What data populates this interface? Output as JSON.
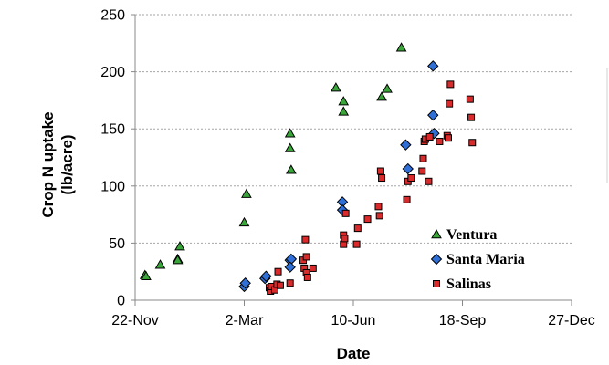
{
  "chart_data": {
    "type": "scatter",
    "title": "",
    "xlabel": "Date",
    "ylabel": "Crop N uptake\n(lb/acre)",
    "x_axis_type": "date",
    "x_ticks": [
      "22-Nov",
      "2-Mar",
      "10-Jun",
      "18-Sep",
      "27-Dec"
    ],
    "y_ticks": [
      "0",
      "50",
      "100",
      "150",
      "200",
      "250"
    ],
    "ylim": [
      0,
      250
    ],
    "grid": "horizontal",
    "legend_position": "bottom-right, inside plot",
    "series": [
      {
        "name": "Ventura",
        "marker": "triangle",
        "color": "#3aa63a",
        "points": [
          [
            "1-Dec",
            22
          ],
          [
            "2-Dec",
            21
          ],
          [
            "15-Dec",
            31
          ],
          [
            "31-Dec",
            36
          ],
          [
            "31-Dec",
            35
          ],
          [
            "2-Jan",
            47
          ],
          [
            "2-Mar",
            68
          ],
          [
            "4-Mar",
            93
          ],
          [
            "13-Apr",
            146
          ],
          [
            "13-Apr",
            133
          ],
          [
            "14-Apr",
            114
          ],
          [
            "25-May",
            186
          ],
          [
            "1-Jun",
            174
          ],
          [
            "1-Jun",
            165
          ],
          [
            "6-Jul",
            178
          ],
          [
            "11-Jul",
            185
          ],
          [
            "24-Jul",
            221
          ]
        ]
      },
      {
        "name": "Santa Maria",
        "marker": "diamond",
        "color": "#2f6fd6",
        "points": [
          [
            "2-Mar",
            12
          ],
          [
            "3-Mar",
            15
          ],
          [
            "21-Mar",
            19
          ],
          [
            "22-Mar",
            21
          ],
          [
            "13-Apr",
            35
          ],
          [
            "14-Apr",
            36
          ],
          [
            "13-Apr",
            29
          ],
          [
            "31-May",
            86
          ],
          [
            "31-May",
            79
          ],
          [
            "28-Jul",
            136
          ],
          [
            "30-Jul",
            115
          ],
          [
            "22-Aug",
            205
          ],
          [
            "22-Aug",
            162
          ],
          [
            "23-Aug",
            146
          ]
        ]
      },
      {
        "name": "Salinas",
        "marker": "square",
        "color": "#d92b2b",
        "points": [
          [
            "25-Mar",
            11
          ],
          [
            "26-Mar",
            8
          ],
          [
            "27-Mar",
            12
          ],
          [
            "30-Mar",
            9
          ],
          [
            "1-Apr",
            14
          ],
          [
            "4-Apr",
            13
          ],
          [
            "2-Apr",
            25
          ],
          [
            "13-Apr",
            15
          ],
          [
            "25-Apr",
            35
          ],
          [
            "26-Apr",
            28
          ],
          [
            "27-Apr",
            53
          ],
          [
            "28-Apr",
            38
          ],
          [
            "28-Apr",
            24
          ],
          [
            "29-Apr",
            20
          ],
          [
            "4-May",
            28
          ],
          [
            "1-Jun",
            57
          ],
          [
            "1-Jun",
            49
          ],
          [
            "2-Jun",
            54
          ],
          [
            "3-Jun",
            76
          ],
          [
            "13-Jun",
            49
          ],
          [
            "14-Jun",
            63
          ],
          [
            "23-Jun",
            71
          ],
          [
            "3-Jul",
            82
          ],
          [
            "4-Jul",
            74
          ],
          [
            "5-Jul",
            113
          ],
          [
            "6-Jul",
            107
          ],
          [
            "29-Jul",
            88
          ],
          [
            "30-Jul",
            104
          ],
          [
            "2-Aug",
            107
          ],
          [
            "12-Aug",
            113
          ],
          [
            "13-Aug",
            124
          ],
          [
            "14-Aug",
            139
          ],
          [
            "15-Aug",
            141
          ],
          [
            "18-Aug",
            104
          ],
          [
            "19-Aug",
            143
          ],
          [
            "28-Aug",
            139
          ],
          [
            "4-Sep",
            144
          ],
          [
            "5-Sep",
            142
          ],
          [
            "6-Sep",
            172
          ],
          [
            "7-Sep",
            189
          ],
          [
            "25-Sep",
            176
          ],
          [
            "26-Sep",
            160
          ],
          [
            "27-Sep",
            138
          ]
        ]
      }
    ]
  }
}
